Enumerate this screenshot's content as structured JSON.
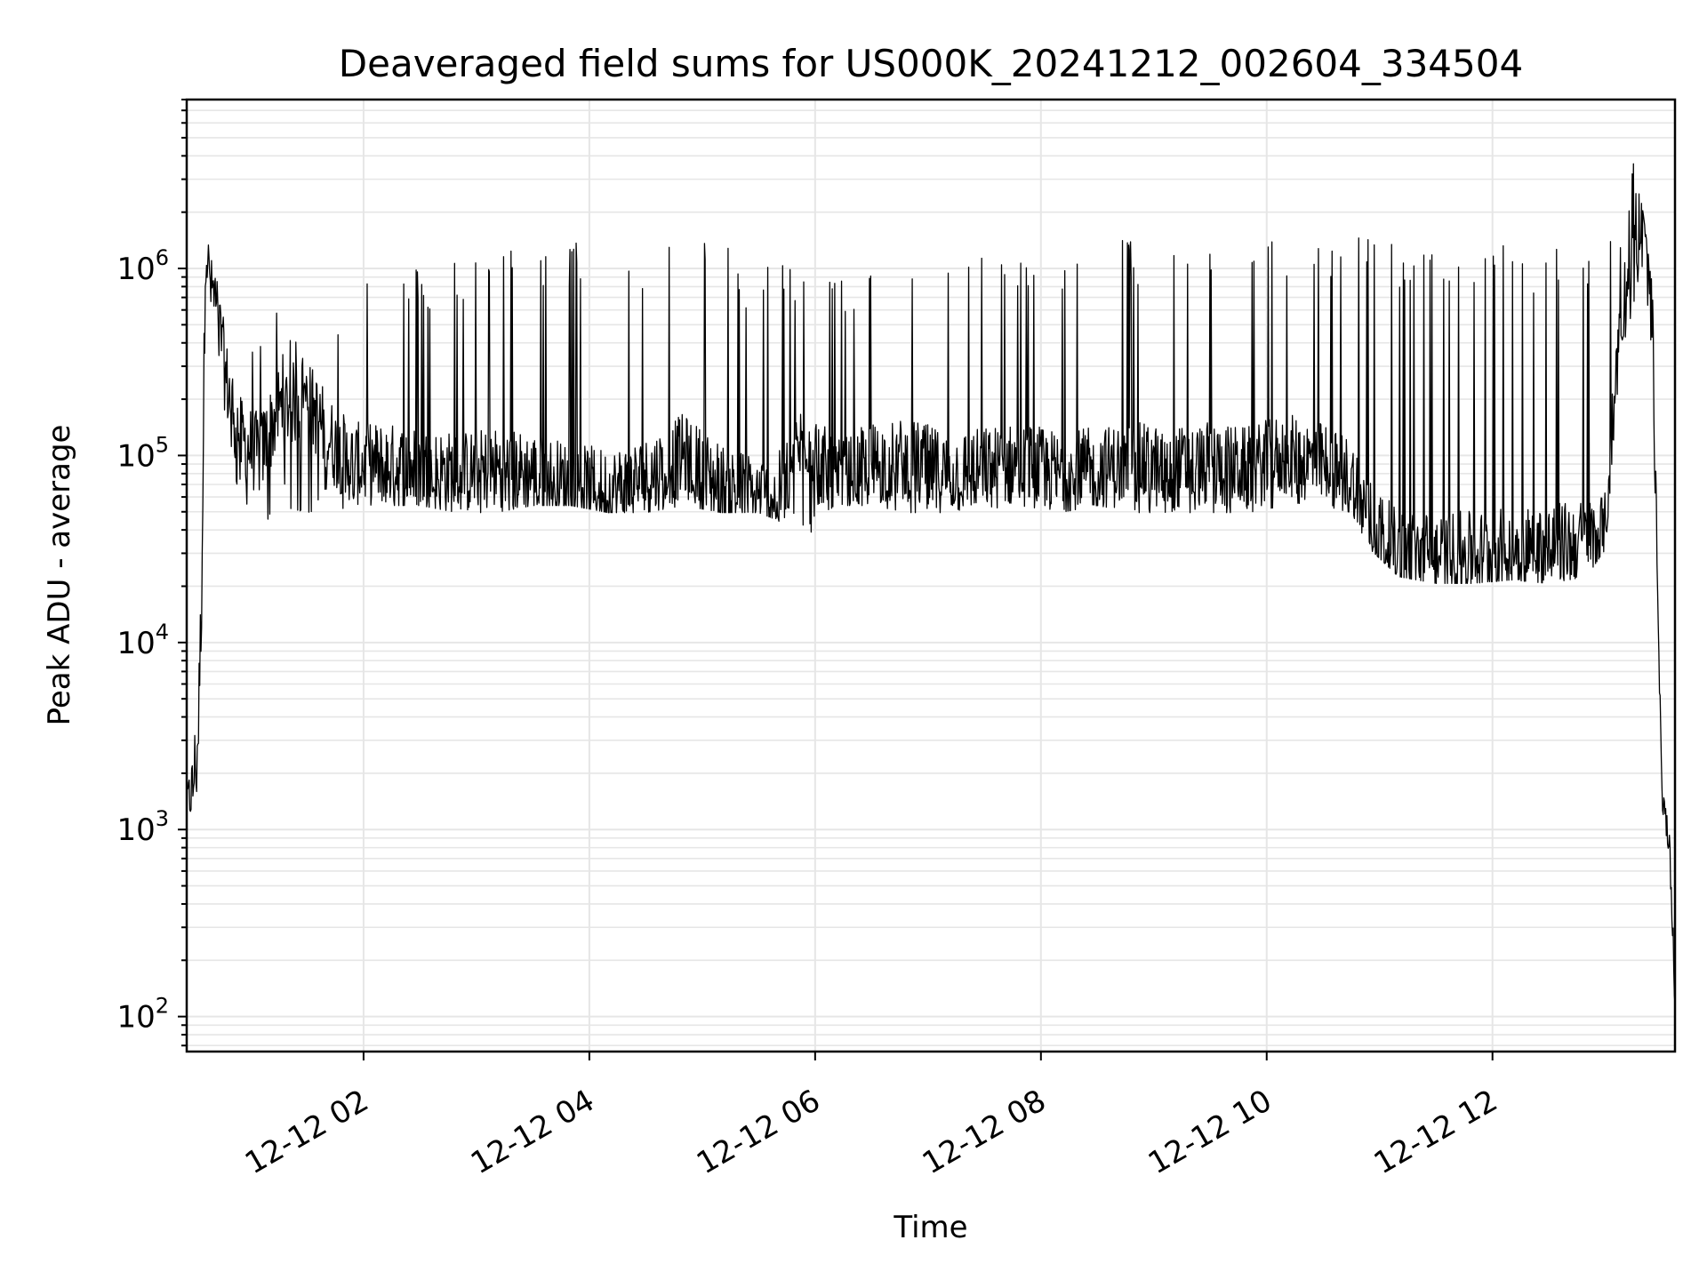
{
  "chart_data": {
    "type": "line",
    "title": "Deaveraged field sums for US000K_20241212_002604_334504",
    "xlabel": "Time",
    "ylabel": "Peak ADU - average",
    "yscale": "log",
    "ylim": [
      65,
      8000000
    ],
    "xlim": [
      "2024-12-12T00:26",
      "2024-12-12T13:37"
    ],
    "grid": true,
    "line_color": "#000000",
    "x_ticks": [
      {
        "t": "2024-12-12T02:00",
        "label": "12-12 02"
      },
      {
        "t": "2024-12-12T04:00",
        "label": "12-12 04"
      },
      {
        "t": "2024-12-12T06:00",
        "label": "12-12 06"
      },
      {
        "t": "2024-12-12T08:00",
        "label": "12-12 08"
      },
      {
        "t": "2024-12-12T10:00",
        "label": "12-12 10"
      },
      {
        "t": "2024-12-12T12:00",
        "label": "12-12 12"
      }
    ],
    "y_ticks": [
      {
        "value": 100,
        "base": "10",
        "exp": "2"
      },
      {
        "value": 1000,
        "base": "10",
        "exp": "3"
      },
      {
        "value": 10000,
        "base": "10",
        "exp": "4"
      },
      {
        "value": 100000,
        "base": "10",
        "exp": "5"
      },
      {
        "value": 1000000,
        "base": "10",
        "exp": "6"
      }
    ],
    "series": [
      {
        "type": "envelope",
        "x": [
          "2024-12-12T00:26",
          "2024-12-12T00:29",
          "2024-12-12T00:32",
          "2024-12-12T00:34",
          "2024-12-12T00:36",
          "2024-12-12T00:38",
          "2024-12-12T00:42",
          "2024-12-12T00:47",
          "2024-12-12T00:55",
          "2024-12-12T01:05",
          "2024-12-12T01:15",
          "2024-12-12T01:30",
          "2024-12-12T01:45",
          "2024-12-12T01:55",
          "2024-12-12T02:10",
          "2024-12-12T02:30",
          "2024-12-12T02:50",
          "2024-12-12T03:10",
          "2024-12-12T03:30",
          "2024-12-12T03:50",
          "2024-12-12T04:10",
          "2024-12-12T04:30",
          "2024-12-12T04:50",
          "2024-12-12T05:10",
          "2024-12-12T05:30",
          "2024-12-12T05:40",
          "2024-12-12T05:55",
          "2024-12-12T06:10",
          "2024-12-12T06:30",
          "2024-12-12T06:50",
          "2024-12-12T07:10",
          "2024-12-12T07:30",
          "2024-12-12T07:50",
          "2024-12-12T08:10",
          "2024-12-12T08:30",
          "2024-12-12T08:50",
          "2024-12-12T09:10",
          "2024-12-12T09:30",
          "2024-12-12T09:50",
          "2024-12-12T10:10",
          "2024-12-12T10:30",
          "2024-12-12T10:45",
          "2024-12-12T10:55",
          "2024-12-12T11:10",
          "2024-12-12T11:30",
          "2024-12-12T11:50",
          "2024-12-12T12:10",
          "2024-12-12T12:30",
          "2024-12-12T12:50",
          "2024-12-12T13:00",
          "2024-12-12T13:08",
          "2024-12-12T13:14",
          "2024-12-12T13:20",
          "2024-12-12T13:25",
          "2024-12-12T13:30",
          "2024-12-12T13:34",
          "2024-12-12T13:36",
          "2024-12-12T13:37"
        ],
        "y_low": [
          1200,
          1500,
          1800,
          5000,
          500000,
          700000,
          500000,
          150000,
          60000,
          45000,
          60000,
          55000,
          60000,
          55000,
          60000,
          60000,
          55000,
          55000,
          60000,
          60000,
          55000,
          55000,
          60000,
          55000,
          55000,
          50000,
          40000,
          60000,
          60000,
          55000,
          55000,
          60000,
          55000,
          55000,
          60000,
          55000,
          55000,
          55000,
          55000,
          60000,
          60000,
          55000,
          35000,
          25000,
          23000,
          23000,
          24000,
          23000,
          25000,
          35000,
          350000,
          600000,
          1200000,
          300000,
          1500,
          800,
          250,
          110
        ],
        "y_high": [
          1600,
          2200,
          9000,
          50000,
          1900000,
          1200000,
          900000,
          600000,
          550000,
          450000,
          600000,
          350000,
          550000,
          1200000,
          1200000,
          1000000,
          1200000,
          1200000,
          1400000,
          1400000,
          1400000,
          1400000,
          1500000,
          1400000,
          900000,
          1300000,
          1000000,
          1100000,
          1000000,
          1000000,
          1000000,
          1200000,
          1200000,
          1300000,
          1400000,
          1500000,
          1200000,
          1400000,
          1600000,
          1600000,
          1500000,
          1600000,
          1500000,
          1400000,
          1400000,
          1300000,
          1400000,
          1300000,
          1400000,
          1800000,
          1900000,
          4500000,
          2000000,
          800000,
          1700,
          1000,
          300,
          120
        ],
        "y_typical": [
          1300,
          1700,
          3000,
          20000,
          1500000,
          900000,
          600000,
          250000,
          120000,
          100000,
          180000,
          200000,
          110000,
          90000,
          90000,
          85000,
          80000,
          85000,
          80000,
          70000,
          65000,
          75000,
          100000,
          70000,
          60000,
          60000,
          130000,
          70000,
          90000,
          95000,
          80000,
          85000,
          90000,
          80000,
          85000,
          90000,
          85000,
          90000,
          85000,
          100000,
          90000,
          75000,
          45000,
          30000,
          30000,
          30000,
          32000,
          33000,
          35000,
          38000,
          600000,
          900000,
          1800000,
          600000,
          1600,
          900,
          270,
          115
        ]
      }
    ]
  }
}
